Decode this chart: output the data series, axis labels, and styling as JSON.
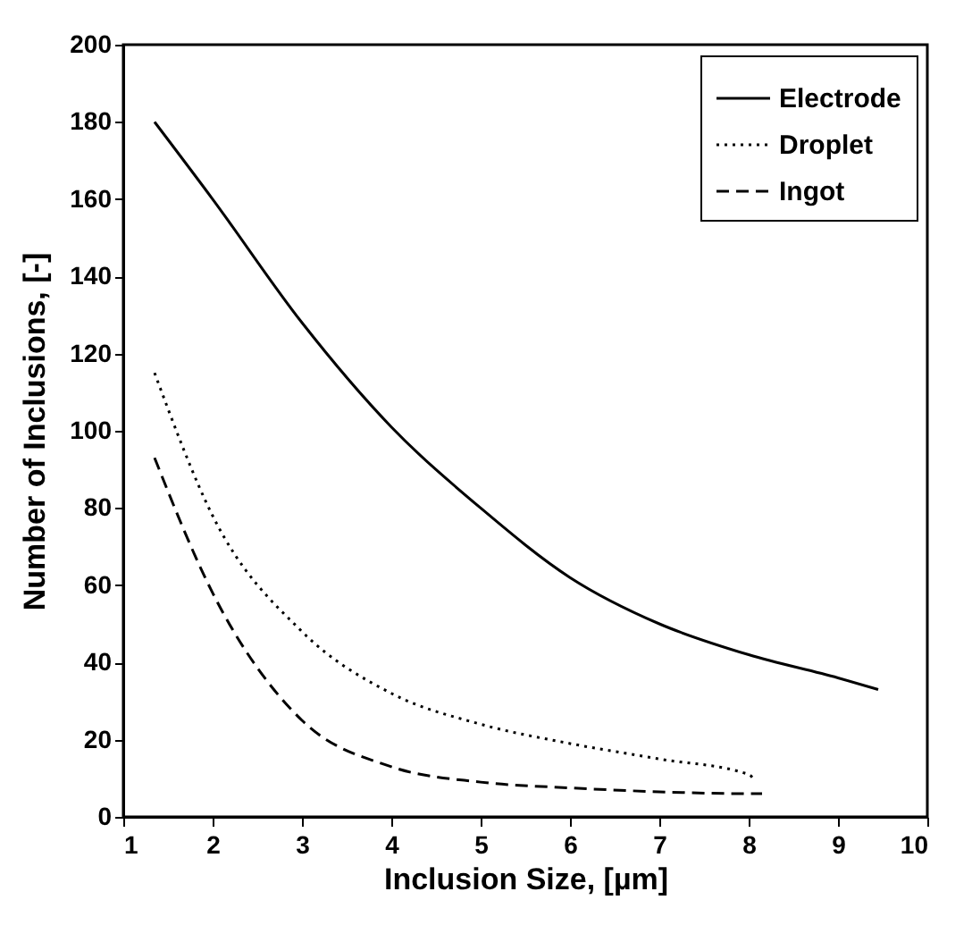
{
  "chart_data": {
    "type": "line",
    "xlabel": "Inclusion Size, [µm]",
    "ylabel": "Number of Inclusions, [-]",
    "xlim": [
      1,
      10
    ],
    "xticks": [
      1,
      2,
      3,
      4,
      5,
      6,
      7,
      8,
      9,
      10
    ],
    "ylim": [
      0,
      200
    ],
    "yticks": [
      0,
      20,
      40,
      60,
      80,
      100,
      120,
      140,
      160,
      180,
      200
    ],
    "grid": false,
    "legend": "top right",
    "marker": "none",
    "series": [
      {
        "name": "Electrode",
        "color": "#000000",
        "line_style": "solid",
        "x": [
          1.35,
          2,
          3,
          4,
          5,
          6,
          7,
          8,
          9,
          9.45
        ],
        "values": [
          180,
          160,
          128,
          101,
          80,
          62,
          50,
          42,
          36,
          33
        ]
      },
      {
        "name": "Droplet",
        "color": "#000000",
        "line_style": "dotted",
        "x": [
          1.35,
          2,
          3,
          4,
          5,
          6,
          7,
          8,
          8.05
        ],
        "values": [
          115,
          78,
          48,
          32,
          24,
          19,
          15,
          11,
          10
        ]
      },
      {
        "name": "Ingot",
        "color": "#000000",
        "line_style": "dashed",
        "x": [
          1.35,
          2,
          3,
          4,
          5,
          6,
          7,
          8,
          8.15
        ],
        "values": [
          93,
          58,
          25,
          13,
          9,
          7.5,
          6.5,
          6,
          6
        ]
      }
    ]
  }
}
